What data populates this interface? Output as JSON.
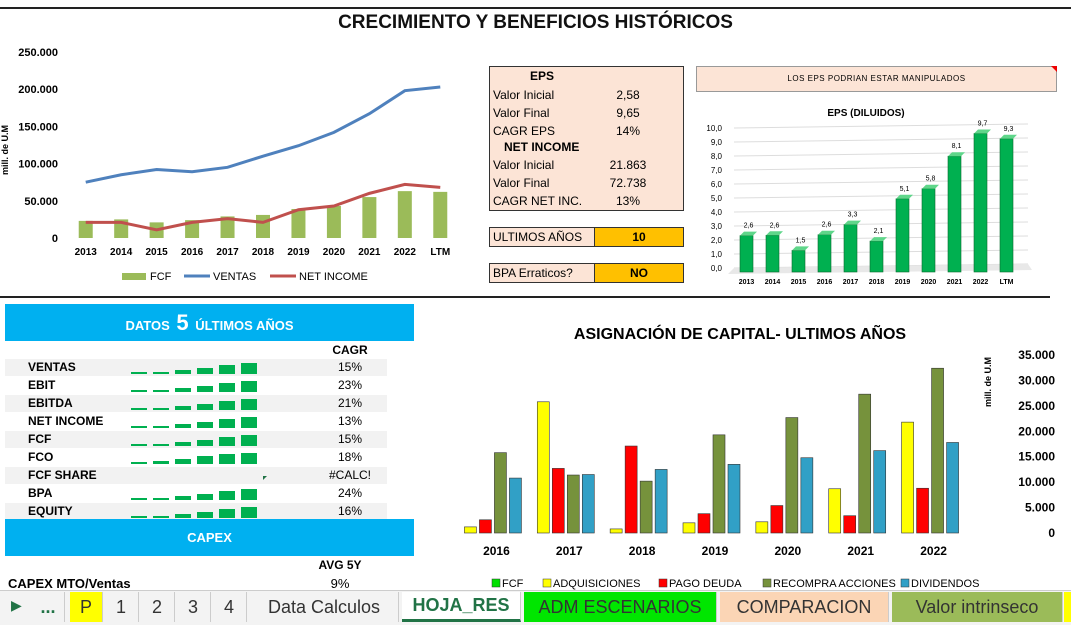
{
  "title": "CRECIMIENTO Y BENEFICIOS HISTÓRICOS",
  "top_chart": {
    "ylabel": "mill. de U.M",
    "y_ticks": [
      "250.000",
      "200.000",
      "150.000",
      "100.000",
      "50.000",
      "0"
    ],
    "legend": [
      "FCF",
      "VENTAS",
      "NET INCOME"
    ]
  },
  "eps_box": {
    "eps_title": "EPS",
    "net_title": "NET INCOME",
    "rows": [
      {
        "label": "Valor Inicial",
        "value": "2,58"
      },
      {
        "label": "Valor Final",
        "value": "9,65"
      },
      {
        "label": "CAGR EPS",
        "value": "14%"
      },
      {
        "label": "Valor Inicial",
        "value": "21.863"
      },
      {
        "label": "Valor Final",
        "value": "72.738"
      },
      {
        "label": "CAGR NET INC.",
        "value": "13%"
      }
    ],
    "ultimos_label": "ULTIMOS AÑOS",
    "ultimos_value": "10",
    "bpa_label": "BPA Erraticos?",
    "bpa_value": "NO"
  },
  "warning": "LOS EPS PODRIAN ESTAR MANIPULADOS",
  "eps_chart_title": "EPS (DILUIDOS)",
  "eps_y_ticks": [
    "10,0",
    "9,0",
    "8,0",
    "7,0",
    "6,0",
    "5,0",
    "4,0",
    "3,0",
    "2,0",
    "1,0",
    "0,0"
  ],
  "datos": {
    "header_pre": "DATOS",
    "header_num": "5",
    "header_post": "ÚLTIMOS AÑOS",
    "cagr_header": "CAGR",
    "rows": [
      {
        "name": "VENTAS",
        "cagr": "15%"
      },
      {
        "name": "EBIT",
        "cagr": "23%"
      },
      {
        "name": "EBITDA",
        "cagr": "21%"
      },
      {
        "name": "NET INCOME",
        "cagr": "13%"
      },
      {
        "name": "FCF",
        "cagr": "15%"
      },
      {
        "name": "FCO",
        "cagr": "18%"
      },
      {
        "name": "FCF SHARE",
        "cagr": "#CALC!"
      },
      {
        "name": "BPA",
        "cagr": "24%"
      },
      {
        "name": "EQUITY",
        "cagr": "16%"
      }
    ],
    "capex_header": "CAPEX",
    "avg_header": "AVG 5Y",
    "capex_label": "CAPEX MTO/Ventas",
    "capex_value": "9%"
  },
  "asig": {
    "title": "ASIGNACIÓN DE CAPITAL- ULTIMOS AÑOS",
    "ylabel": "mill. de U.M",
    "y_ticks": [
      "35.000",
      "30.000",
      "25.000",
      "20.000",
      "15.000",
      "10.000",
      "5.000",
      "0"
    ],
    "legend": [
      "FCF",
      "ADQUISICIONES",
      "PAGO DEUDA",
      "RECOMPRA ACCIONES",
      "DIVIDENDOS"
    ]
  },
  "tabs": [
    "...",
    "P",
    "1",
    "2",
    "3",
    "4",
    "Data Calculos",
    "HOJA_RES",
    "ADM ESCENARIOS",
    "COMPARACION",
    "Valor intrinseco"
  ],
  "colors": {
    "fcf": "#9bbb59",
    "ventas": "#4f81bd",
    "net": "#c0504d",
    "accent": "#00b0f0",
    "eps_bar": "#00b050"
  },
  "chart_data": [
    {
      "type": "line",
      "categories": [
        "2013",
        "2014",
        "2015",
        "2016",
        "2017",
        "2018",
        "2019",
        "2020",
        "2021",
        "2022",
        "LTM"
      ],
      "ylim": [
        0,
        250000
      ],
      "ylabel": "mill. de U.M",
      "series": [
        {
          "name": "FCF",
          "type": "bar",
          "values": [
            23000,
            25000,
            21000,
            24000,
            29000,
            31000,
            39000,
            43000,
            55000,
            63000,
            62000
          ]
        },
        {
          "name": "VENTAS",
          "values": [
            75000,
            85000,
            92000,
            89000,
            95000,
            110000,
            124000,
            142000,
            167000,
            198000,
            203000
          ]
        },
        {
          "name": "NET INCOME",
          "values": [
            21000,
            21000,
            11000,
            21000,
            26000,
            21000,
            38000,
            43000,
            60000,
            72000,
            68000
          ]
        }
      ]
    },
    {
      "type": "bar",
      "title": "EPS (DILUIDOS)",
      "categories": [
        "2013",
        "2014",
        "2015",
        "2016",
        "2017",
        "2018",
        "2019",
        "2020",
        "2021",
        "2022",
        "LTM"
      ],
      "values": [
        2.6,
        2.6,
        1.5,
        2.6,
        3.3,
        2.1,
        5.1,
        5.8,
        8.1,
        9.7,
        9.3
      ],
      "labels": [
        "2,6",
        "2,6",
        "1,5",
        "2,6",
        "3,3",
        "2,1",
        "5,1",
        "5,8",
        "8,1",
        "9,7",
        "9,3"
      ],
      "ylim": [
        0,
        10
      ]
    },
    {
      "type": "bar",
      "title": "ASIGNACIÓN DE CAPITAL- ULTIMOS AÑOS",
      "categories": [
        "2016",
        "2017",
        "2018",
        "2019",
        "2020",
        "2021",
        "2022"
      ],
      "ylim": [
        0,
        35000
      ],
      "ylabel": "mill. de U.M",
      "series": [
        {
          "name": "FCF",
          "values": [
            0,
            0,
            0,
            0,
            0,
            0,
            0
          ]
        },
        {
          "name": "ADQUISICIONES",
          "values": [
            1200,
            25800,
            800,
            2000,
            2200,
            8700,
            21800
          ]
        },
        {
          "name": "PAGO DEUDA",
          "values": [
            2600,
            12700,
            17100,
            3800,
            5400,
            3400,
            8800
          ]
        },
        {
          "name": "RECOMPRA ACCIONES",
          "values": [
            15800,
            11400,
            10200,
            19300,
            22700,
            27300,
            32400
          ]
        },
        {
          "name": "DIVIDENDOS",
          "values": [
            10800,
            11500,
            12500,
            13500,
            14800,
            16200,
            17800
          ]
        }
      ]
    }
  ]
}
